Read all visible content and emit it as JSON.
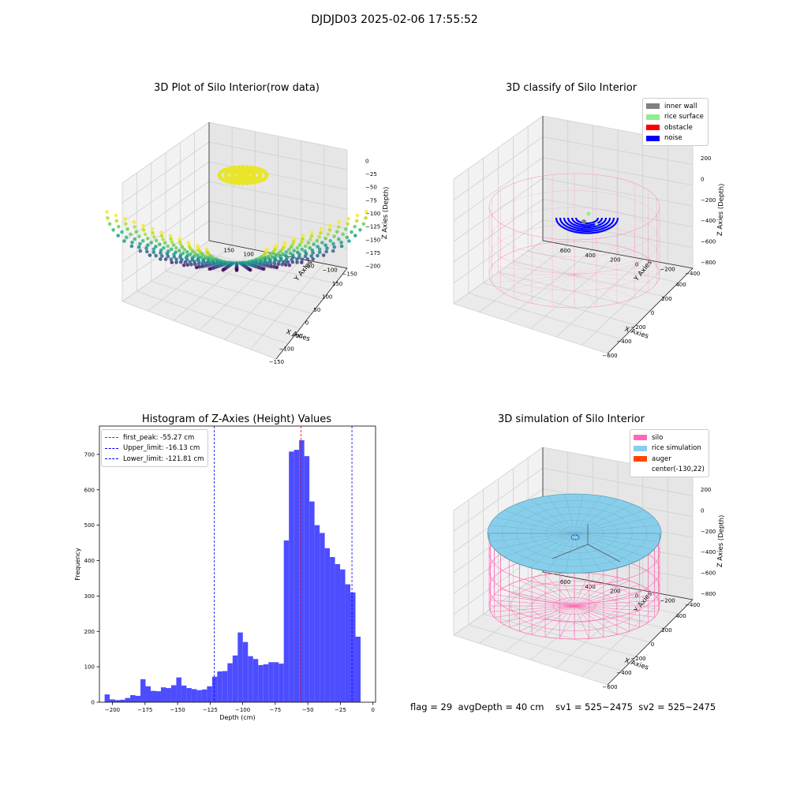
{
  "figure": {
    "suptitle": "DJDJD03 2025-02-06 17:55:52",
    "footer": "flag = 29  avgDepth = 40 cm    sv1 = 525~2475  sv2 = 525~2475"
  },
  "chart_data": [
    {
      "type": "scatter",
      "projection": "3d",
      "title": "3D Plot of Silo Interior(row data)",
      "xlabel": "X Axies",
      "ylabel": "Y Axies",
      "zlabel": "Z Axies (Depth)",
      "xticks": [
        "−150",
        "−100",
        "−50",
        "0",
        "50",
        "100",
        "150"
      ],
      "yticks": [
        "−150",
        "−100",
        "−50",
        "0",
        "50",
        "100",
        "150"
      ],
      "zticks": [
        "0",
        "−25",
        "−50",
        "−75",
        "−100",
        "−125",
        "−150",
        "−175",
        "−200"
      ],
      "xlim": [
        -170,
        170
      ],
      "ylim": [
        -170,
        170
      ],
      "zlim": [
        -205,
        0
      ],
      "colormap": "viridis",
      "grid": true
    },
    {
      "type": "scatter",
      "projection": "3d",
      "title": "3D classify of Silo Interior",
      "xlabel": "X Axies",
      "ylabel": "Y Axies",
      "zlabel": "Z Axies (Depth)",
      "xticks": [
        "−600",
        "−400",
        "−200",
        "0",
        "200",
        "400"
      ],
      "yticks": [
        "−400",
        "−200",
        "0",
        "200",
        "400",
        "600"
      ],
      "zticks": [
        "200",
        "0",
        "−200",
        "−400",
        "−600",
        "−800"
      ],
      "legend": [
        {
          "label": "inner wall",
          "color": "#808080"
        },
        {
          "label": "rice surface",
          "color": "#90ee90"
        },
        {
          "label": "obstacle",
          "color": "#ff0000"
        },
        {
          "label": "noise",
          "color": "#0000ff"
        }
      ],
      "legend_position": "upper right",
      "grid": true
    },
    {
      "type": "bar",
      "title": "Histogram of Z-Axies (Height) Values",
      "xlabel": "Depth (cm)",
      "ylabel": "Frequency",
      "bar_color": "#4d4dff",
      "bin_start": -206,
      "bin_width": 3.93,
      "values": [
        22,
        8,
        6,
        7,
        12,
        20,
        18,
        65,
        45,
        32,
        31,
        42,
        40,
        48,
        70,
        47,
        40,
        37,
        34,
        36,
        45,
        72,
        87,
        88,
        110,
        132,
        197,
        170,
        130,
        122,
        105,
        107,
        113,
        113,
        109,
        457,
        708,
        713,
        740,
        695,
        567,
        500,
        478,
        435,
        410,
        390,
        375,
        333,
        310,
        185
      ],
      "xlim": [
        -210,
        2
      ],
      "ylim": [
        0,
        780
      ],
      "xticks": [
        -200,
        -175,
        -150,
        -125,
        -100,
        -75,
        -50,
        -25,
        0
      ],
      "xtick_labels": [
        "−200",
        "−175",
        "−150",
        "−125",
        "−100",
        "−75",
        "−50",
        "−25",
        "0"
      ],
      "yticks": [
        0,
        100,
        200,
        300,
        400,
        500,
        600,
        700
      ],
      "ytick_labels": [
        "0",
        "100",
        "200",
        "300",
        "400",
        "500",
        "600",
        "700"
      ],
      "vlines": [
        {
          "x": -55.27,
          "color": "#ff0000",
          "label": "first_peak: -55.27 cm"
        },
        {
          "x": -16.13,
          "color": "#0000ff",
          "label": "Upper_limit: -16.13 cm"
        },
        {
          "x": -121.81,
          "color": "#0000ff",
          "label": "Lower_limit: -121.81 cm"
        }
      ],
      "legend_position": "upper left"
    },
    {
      "type": "surface",
      "projection": "3d",
      "title": "3D simulation of Silo Interior",
      "xlabel": "X Axies",
      "ylabel": "Y Axies",
      "zlabel": "Z Axies (Depth)",
      "xticks": [
        "−600",
        "−400",
        "−200",
        "0",
        "200",
        "400"
      ],
      "yticks": [
        "−400",
        "−200",
        "0",
        "200",
        "400",
        "600"
      ],
      "zticks": [
        "200",
        "0",
        "−200",
        "−400",
        "−600",
        "−800"
      ],
      "legend": [
        {
          "label": "silo",
          "color": "#ff69b4"
        },
        {
          "label": "rice simulation",
          "color": "#87ceeb"
        },
        {
          "label": "auger",
          "color": "#ff4500"
        },
        {
          "label": "center(-130,22)",
          "color": ""
        }
      ],
      "legend_position": "upper right",
      "grid": true
    }
  ]
}
